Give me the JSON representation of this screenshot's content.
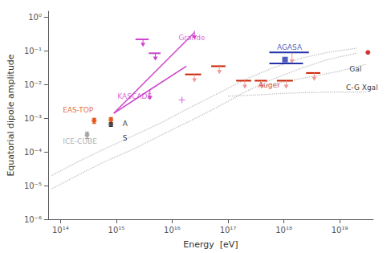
{
  "chart_data": {
    "type": "scatter",
    "xlabel": "Energy  [eV]",
    "ylabel": "Equatorial dipole amplitude",
    "log": true,
    "grid": false,
    "xlim": [
      60000000000000.0,
      4e+19
    ],
    "ylim": [
      1e-06,
      1.5
    ],
    "xticks": [
      {
        "value": 100000000000000.0,
        "label": "10¹⁴"
      },
      {
        "value": 1000000000000000.0,
        "label": "10¹⁵"
      },
      {
        "value": 1e+16,
        "label": "10¹⁶"
      },
      {
        "value": 1e+17,
        "label": "10¹⁷"
      },
      {
        "value": 1e+18,
        "label": "10¹⁸"
      },
      {
        "value": 1e+19,
        "label": "10¹⁹"
      }
    ],
    "yticks": [
      {
        "value": 1e-06,
        "label": "10⁻⁶"
      },
      {
        "value": 1e-05,
        "label": "10⁻⁵"
      },
      {
        "value": 0.0001,
        "label": "10⁻⁴"
      },
      {
        "value": 0.001,
        "label": "10⁻³"
      },
      {
        "value": 0.01,
        "label": "10⁻²"
      },
      {
        "value": 0.1,
        "label": "10⁻¹"
      },
      {
        "value": 1,
        "label": "10⁰"
      }
    ],
    "series": [
      {
        "type": "line",
        "line_style": "dotted",
        "color": "#bbbbbb",
        "x": [
          70000000000000.0,
          200000000000000.0,
          600000000000000.0,
          2000000000000000.0,
          6000000000000000.0,
          2e+16,
          6e+16,
          2e+17,
          6e+17,
          2e+18,
          6e+18,
          2e+19
        ],
        "y": [
          2e-05,
          5e-05,
          0.00012,
          0.0003,
          0.0007,
          0.002,
          0.005,
          0.014,
          0.03,
          0.06,
          0.09,
          0.12
        ]
      },
      {
        "type": "line",
        "line_style": "dotted",
        "color": "#bbbbbb",
        "x": [
          70000000000000.0,
          200000000000000.0,
          600000000000000.0,
          2000000000000000.0,
          6000000000000000.0,
          2e+16,
          6e+16,
          2e+17,
          6e+17,
          2e+18,
          6e+18,
          2e+19
        ],
        "y": [
          8e-06,
          2e-05,
          5e-05,
          0.00012,
          0.0003,
          0.0008,
          0.002,
          0.006,
          0.014,
          0.03,
          0.055,
          0.085
        ]
      },
      {
        "type": "line",
        "line_style": "dotted",
        "color": "#bbbbbb",
        "x": [
          4e+17,
          1e+18,
          3e+18,
          1e+19,
          3e+19
        ],
        "y": [
          0.009,
          0.012,
          0.017,
          0.025,
          0.04
        ]
      },
      {
        "type": "line",
        "line_style": "dotted",
        "color": "#bbbbbb",
        "x": [
          1e+17,
          4e+17,
          1e+18,
          3e+18,
          1e+19,
          3e+19
        ],
        "y": [
          0.0045,
          0.005,
          0.0055,
          0.0058,
          0.006,
          0.006
        ]
      },
      {
        "type": "line",
        "line_style": "solid",
        "color": "#cc44cc",
        "x": [
          900000000000000.0,
          4000000000000000.0,
          4000000000000000.0,
          1.8e+16
        ],
        "y": [
          0.0014,
          0.007,
          0.007,
          0.035
        ]
      },
      {
        "type": "line",
        "line_style": "solid",
        "color": "#cc44cc",
        "x": [
          900000000000000.0,
          2.5e+16
        ],
        "y": [
          0.0014,
          0.35
        ]
      },
      {
        "type": "arrow",
        "color": "#cc44cc",
        "x": [
          4000000000000000.0,
          2.5e+16,
          3000000000000000.0,
          5000000000000000.0
        ],
        "y_start": [
          0.007,
          0.4,
          0.22,
          0.085
        ],
        "y_end": [
          0.0035,
          0.22,
          0.132,
          0.051
        ]
      },
      {
        "type": "scatter",
        "marker": "plus",
        "color": "#cc44cc",
        "x": [
          1.5e+16
        ],
        "y": [
          0.0035
        ]
      },
      {
        "type": "xerror",
        "color": "#cc44cc",
        "x": [
          3000000000000000.0,
          5000000000000000.0
        ],
        "y": [
          0.22,
          0.085
        ],
        "xerr_lo": [
          800000000000000.0,
          1200000000000000.0
        ],
        "xerr_hi": [
          800000000000000.0,
          1200000000000000.0
        ]
      },
      {
        "type": "scatter",
        "marker": "circle",
        "color": "#dd4400",
        "x": [
          400000000000000.0,
          800000000000000.0
        ],
        "y": [
          0.00085,
          0.0009
        ],
        "yerr_lo": [
          0.00015,
          0.00015
        ],
        "yerr_hi": [
          0.00015,
          0.00015
        ]
      },
      {
        "type": "scatter",
        "marker": "circle",
        "color": "#999999",
        "x": [
          300000000000000.0
        ],
        "y": [
          0.00032
        ],
        "yerr_lo": [
          7e-05
        ],
        "yerr_hi": [
          7e-05
        ]
      },
      {
        "type": "scatter",
        "marker": "circle",
        "color": "#333333",
        "x": [
          800000000000000.0
        ],
        "y": [
          0.00065
        ],
        "yerr_lo": [
          8e-05
        ],
        "yerr_hi": [
          8e-05
        ]
      },
      {
        "type": "xerror",
        "color": "#cc2200",
        "x": [
          2.5e+16,
          7e+16,
          2e+17,
          4e+17,
          1.1e+18,
          3.5e+18
        ],
        "y": [
          0.02,
          0.035,
          0.013,
          0.013,
          0.013,
          0.022
        ],
        "xerr_lo": [
          8000000000000000.0,
          2e+16,
          6e+16,
          1e+17,
          3.5e+17,
          1e+18
        ],
        "xerr_hi": [
          8000000000000000.0,
          2e+16,
          6e+16,
          1e+17,
          3.5e+17,
          1e+18
        ]
      },
      {
        "type": "arrow",
        "color": "#ee9999",
        "x": [
          2.5e+16,
          7e+16,
          2e+17,
          4e+17,
          1.1e+18,
          3.5e+18,
          1.4e+18
        ],
        "y_start": [
          0.02,
          0.035,
          0.013,
          0.013,
          0.013,
          0.022,
          0.09
        ],
        "y_end": [
          0.0116,
          0.0203,
          0.00754,
          0.00754,
          0.00754,
          0.01276,
          0.042
        ]
      },
      {
        "type": "scatter",
        "marker": "square",
        "color": "#2233aa",
        "x": [
          1.05e+18
        ],
        "y": [
          0.055
        ]
      },
      {
        "type": "segment",
        "color": "#2233aa",
        "x1": [
          5.5e+17,
          5.5e+17
        ],
        "x2": [
          2.8e+18,
          2.2e+18
        ],
        "y": [
          0.09,
          0.042
        ]
      },
      {
        "type": "scatter",
        "marker": "circle",
        "color": "#cc0000",
        "x": [
          3.2e+19
        ],
        "y": [
          0.09
        ]
      }
    ],
    "annotations": [
      {
        "text": "A",
        "x": 1300000000000000.0,
        "y": 0.00055,
        "color": "black"
      },
      {
        "text": "S",
        "x": 1300000000000000.0,
        "y": 0.0002,
        "color": "black"
      },
      {
        "text": "Gal",
        "x": 1.5e+19,
        "y": 0.022,
        "color": "black"
      },
      {
        "text": "C-G Xgal",
        "x": 1.3e+19,
        "y": 0.0062,
        "color": "black"
      },
      {
        "text": "KASCADE",
        "x": 1050000000000000.0,
        "y": 0.0035,
        "color": "#cc44cc"
      },
      {
        "text": "Grande",
        "x": 1.3e+16,
        "y": 0.19,
        "color": "#cc44cc"
      },
      {
        "text": "EAS-TOP",
        "x": 110000000000000.0,
        "y": 0.00135,
        "color": "#dd4400"
      },
      {
        "text": "ICE-CUBE",
        "x": 110000000000000.0,
        "y": 0.00016,
        "color": "#999999"
      },
      {
        "text": "Auger",
        "x": 3.5e+17,
        "y": 0.0075,
        "color": "#cc2200"
      },
      {
        "text": "AGASA",
        "x": 7.5e+17,
        "y": 0.1,
        "color": "#2233aa"
      }
    ]
  }
}
